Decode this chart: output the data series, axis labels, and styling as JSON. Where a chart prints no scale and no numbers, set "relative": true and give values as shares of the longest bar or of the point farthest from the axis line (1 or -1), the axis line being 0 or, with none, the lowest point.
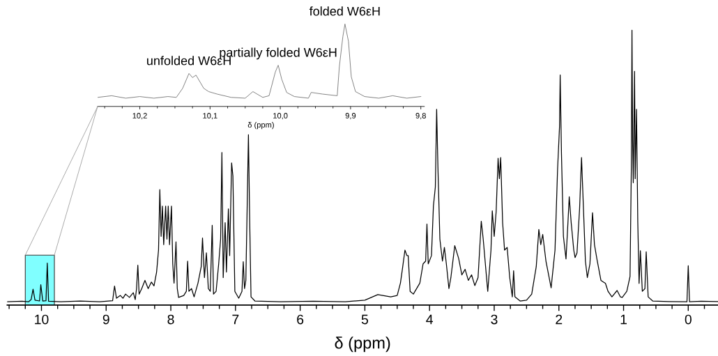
{
  "chart_data": [
    {
      "type": "line",
      "xlabel": "δ (ppm)",
      "relative": true,
      "tick_labels": "x",
      "xlim": [
        10.53,
        -0.46
      ],
      "xticks": [
        {
          "value": 10.5,
          "label": null
        },
        {
          "value": 10.25,
          "label": null
        },
        10,
        {
          "value": 9.75,
          "label": null
        },
        {
          "value": 9.5,
          "label": null
        },
        {
          "value": 9.25,
          "label": null
        },
        9,
        {
          "value": 8.75,
          "label": null
        },
        {
          "value": 8.5,
          "label": null
        },
        {
          "value": 8.25,
          "label": null
        },
        8,
        {
          "value": 7.75,
          "label": null
        },
        {
          "value": 7.5,
          "label": null
        },
        {
          "value": 7.25,
          "label": null
        },
        7,
        {
          "value": 6.75,
          "label": null
        },
        {
          "value": 6.5,
          "label": null
        },
        {
          "value": 6.25,
          "label": null
        },
        6,
        {
          "value": 5.75,
          "label": null
        },
        {
          "value": 5.5,
          "label": null
        },
        {
          "value": 5.25,
          "label": null
        },
        5,
        {
          "value": 4.75,
          "label": null
        },
        {
          "value": 4.5,
          "label": null
        },
        {
          "value": 4.25,
          "label": null
        },
        4,
        {
          "value": 3.75,
          "label": null
        },
        {
          "value": 3.5,
          "label": null
        },
        {
          "value": 3.25,
          "label": null
        },
        3,
        {
          "value": 2.75,
          "label": null
        },
        {
          "value": 2.5,
          "label": null
        },
        {
          "value": 2.25,
          "label": null
        },
        2,
        {
          "value": 1.75,
          "label": null
        },
        {
          "value": 1.5,
          "label": null
        },
        {
          "value": 1.25,
          "label": null
        },
        1,
        {
          "value": 0.75,
          "label": null
        },
        {
          "value": 0.5,
          "label": null
        },
        {
          "value": 0.25,
          "label": null
        },
        0,
        {
          "value": -0.25,
          "label": null
        }
      ],
      "bands": [
        {
          "axis": "x",
          "from": 10.25,
          "to": 9.8,
          "color": "#80ffff"
        }
      ],
      "series": [
        {
          "color": "#000000",
          "x": [
            10.53,
            10.3,
            10.2,
            10.16,
            10.13,
            10.1,
            10.03,
            10.01,
            9.98,
            9.93,
            9.91,
            9.89,
            9.7,
            9.4,
            9.1,
            8.9,
            8.87,
            8.84,
            8.78,
            8.74,
            8.7,
            8.64,
            8.58,
            8.55,
            8.53,
            8.51,
            8.49,
            8.45,
            8.4,
            8.35,
            8.3,
            8.26,
            8.22,
            8.19,
            8.17,
            8.15,
            8.13,
            8.11,
            8.08,
            8.06,
            8.04,
            8.02,
            7.99,
            7.97,
            7.95,
            7.92,
            7.9,
            7.88,
            7.8,
            7.76,
            7.74,
            7.72,
            7.68,
            7.64,
            7.58,
            7.53,
            7.51,
            7.48,
            7.45,
            7.42,
            7.39,
            7.36,
            7.34,
            7.3,
            7.26,
            7.23,
            7.21,
            7.19,
            7.16,
            7.14,
            7.11,
            7.09,
            7.06,
            7.04,
            7.01,
            6.95,
            6.9,
            6.88,
            6.86,
            6.84,
            6.82,
            6.8,
            6.78,
            6.76,
            6.7,
            6.3,
            5.8,
            5.3,
            5.0,
            4.8,
            4.6,
            4.5,
            4.45,
            4.42,
            4.38,
            4.35,
            4.33,
            4.3,
            4.25,
            4.15,
            4.1,
            4.06,
            4.04,
            4.02,
            3.97,
            3.94,
            3.91,
            3.89,
            3.87,
            3.84,
            3.8,
            3.77,
            3.74,
            3.7,
            3.67,
            3.61,
            3.55,
            3.5,
            3.45,
            3.4,
            3.35,
            3.3,
            3.25,
            3.2,
            3.17,
            3.1,
            3.05,
            3.03,
            3.0,
            2.97,
            2.94,
            2.92,
            2.9,
            2.87,
            2.84,
            2.8,
            2.76,
            2.72,
            2.7,
            2.68,
            2.6,
            2.5,
            2.42,
            2.35,
            2.31,
            2.28,
            2.25,
            2.2,
            2.12,
            2.06,
            2.02,
            1.99,
            1.98,
            1.96,
            1.93,
            1.89,
            1.86,
            1.84,
            1.81,
            1.77,
            1.75,
            1.72,
            1.68,
            1.65,
            1.62,
            1.59,
            1.56,
            1.52,
            1.48,
            1.45,
            1.41,
            1.35,
            1.28,
            1.24,
            1.18,
            1.1,
            1.05,
            1.02,
            0.95,
            0.9,
            0.88,
            0.87,
            0.86,
            0.85,
            0.83,
            0.82,
            0.8,
            0.78,
            0.76,
            0.74,
            0.71,
            0.67,
            0.65,
            0.62,
            0.55,
            0.3,
            0.02,
            0.0,
            -0.02,
            -0.2,
            -0.46
          ],
          "values": [
            0.012,
            0.014,
            0.012,
            0.02,
            0.058,
            0.018,
            0.015,
            0.074,
            0.015,
            0.016,
            0.153,
            0.014,
            0.012,
            0.015,
            0.012,
            0.016,
            0.069,
            0.025,
            0.035,
            0.025,
            0.04,
            0.028,
            0.045,
            0.02,
            0.06,
            0.145,
            0.04,
            0.06,
            0.09,
            0.06,
            0.084,
            0.07,
            0.12,
            0.2,
            0.42,
            0.25,
            0.36,
            0.22,
            0.36,
            0.24,
            0.36,
            0.22,
            0.36,
            0.15,
            0.08,
            0.23,
            0.06,
            0.028,
            0.035,
            0.05,
            0.16,
            0.05,
            0.06,
            0.03,
            0.08,
            0.14,
            0.244,
            0.1,
            0.19,
            0.06,
            0.05,
            0.29,
            0.04,
            0.05,
            0.15,
            0.24,
            0.555,
            0.1,
            0.3,
            0.12,
            0.35,
            0.18,
            0.517,
            0.47,
            0.05,
            0.025,
            0.05,
            0.158,
            0.06,
            0.09,
            0.35,
            0.62,
            0.3,
            0.03,
            0.015,
            0.012,
            0.014,
            0.012,
            0.018,
            0.038,
            0.03,
            0.035,
            0.08,
            0.13,
            0.2,
            0.18,
            0.18,
            0.05,
            0.04,
            0.08,
            0.15,
            0.16,
            0.295,
            0.15,
            0.18,
            0.36,
            0.43,
            0.712,
            0.5,
            0.24,
            0.16,
            0.21,
            0.15,
            0.06,
            0.1,
            0.216,
            0.17,
            0.11,
            0.13,
            0.09,
            0.11,
            0.071,
            0.1,
            0.305,
            0.24,
            0.05,
            0.2,
            0.343,
            0.25,
            0.34,
            0.534,
            0.46,
            0.537,
            0.3,
            0.2,
            0.21,
            0.1,
            0.03,
            0.125,
            0.03,
            0.015,
            0.018,
            0.04,
            0.14,
            0.275,
            0.22,
            0.257,
            0.16,
            0.063,
            0.2,
            0.496,
            0.65,
            0.837,
            0.55,
            0.25,
            0.168,
            0.3,
            0.394,
            0.3,
            0.2,
            0.173,
            0.19,
            0.35,
            0.537,
            0.35,
            0.16,
            0.1,
            0.15,
            0.336,
            0.22,
            0.165,
            0.09,
            0.079,
            0.05,
            0.03,
            0.053,
            0.03,
            0.028,
            0.05,
            0.104,
            0.5,
            1.0,
            0.6,
            0.445,
            0.85,
            0.46,
            0.712,
            0.3,
            0.079,
            0.198,
            0.05,
            0.06,
            0.194,
            0.03,
            0.015,
            0.013,
            0.012,
            0.143,
            0.012,
            0.014,
            0.013
          ]
        }
      ]
    },
    {
      "type": "line",
      "xlabel": "δ (ppm)",
      "relative": true,
      "tick_labels": "x",
      "xlim": [
        10.26,
        9.795
      ],
      "xticks": [
        {
          "value": 10.25,
          "label": null
        },
        {
          "value": 10.225,
          "label": null
        },
        {
          "value": 10.2,
          "label": "10,2"
        },
        {
          "value": 10.175,
          "label": null
        },
        {
          "value": 10.15,
          "label": null
        },
        {
          "value": 10.125,
          "label": null
        },
        {
          "value": 10.1,
          "label": "10,1"
        },
        {
          "value": 10.075,
          "label": null
        },
        {
          "value": 10.05,
          "label": null
        },
        {
          "value": 10.025,
          "label": null
        },
        {
          "value": 10.0,
          "label": "10,0"
        },
        {
          "value": 9.975,
          "label": null
        },
        {
          "value": 9.95,
          "label": null
        },
        {
          "value": 9.925,
          "label": null
        },
        {
          "value": 9.9,
          "label": "9,9"
        },
        {
          "value": 9.875,
          "label": null
        },
        {
          "value": 9.85,
          "label": null
        },
        {
          "value": 9.825,
          "label": null
        },
        {
          "value": 9.8,
          "label": "9,8"
        }
      ],
      "annotations": [
        {
          "text": "unfolded W6εH",
          "x": 10.13,
          "y": 0.4
        },
        {
          "text": "partially folded W6εH",
          "x": 10.003,
          "y": 0.5
        },
        {
          "text": "folded W6εH",
          "x": 9.908,
          "y": 1.0
        }
      ],
      "series": [
        {
          "color": "#808080",
          "x": [
            10.26,
            10.24,
            10.22,
            10.2,
            10.18,
            10.16,
            10.148,
            10.139,
            10.13,
            10.125,
            10.12,
            10.109,
            10.102,
            10.09,
            10.07,
            10.05,
            10.039,
            10.025,
            10.016,
            10.007,
            10.003,
            9.998,
            9.991,
            9.98,
            9.96,
            9.956,
            9.94,
            9.919,
            9.916,
            9.911,
            9.908,
            9.903,
            9.899,
            9.893,
            9.88,
            9.86,
            9.84,
            9.82,
            9.8
          ],
          "values": [
            0.11,
            0.13,
            0.1,
            0.12,
            0.1,
            0.12,
            0.11,
            0.22,
            0.4,
            0.35,
            0.38,
            0.22,
            0.18,
            0.15,
            0.11,
            0.1,
            0.18,
            0.11,
            0.13,
            0.42,
            0.5,
            0.33,
            0.17,
            0.12,
            0.1,
            0.17,
            0.15,
            0.13,
            0.48,
            0.845,
            1.0,
            0.79,
            0.36,
            0.18,
            0.12,
            0.1,
            0.13,
            0.1,
            0.12
          ]
        }
      ]
    }
  ]
}
